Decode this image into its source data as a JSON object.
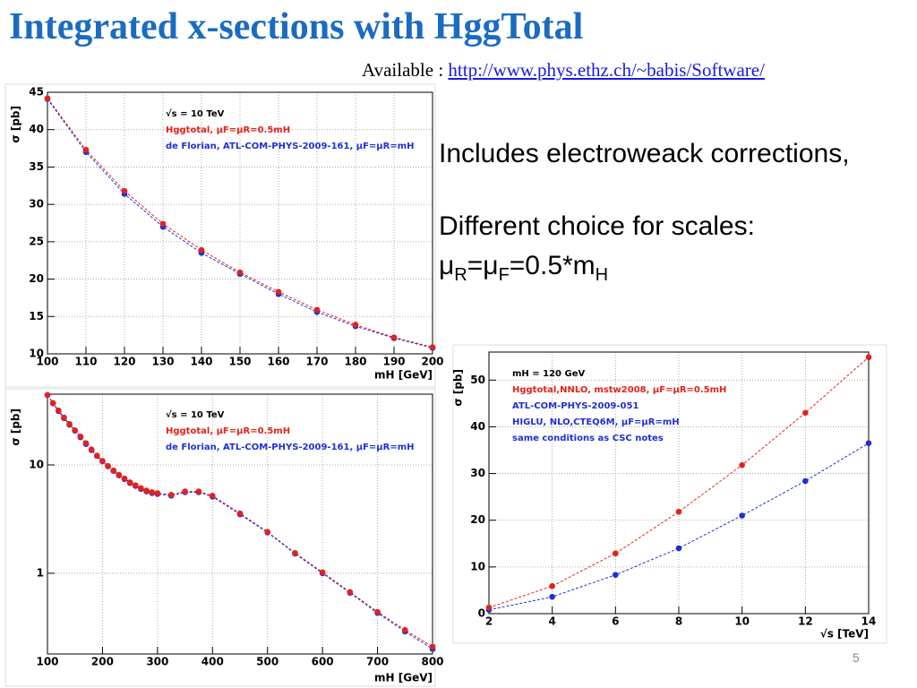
{
  "title": "Integrated x-sections with HggTotal",
  "available_label": "Available :",
  "link": "http://www.phys.ethz.ch/~babis/Software/",
  "bullets": [
    "Includes electroweack corrections,",
    "Different choice for scales:"
  ],
  "formula": [
    "μ",
    "R",
    "=μ",
    "F",
    "=0.5*m",
    "H"
  ],
  "page_number": "5",
  "chart_data": [
    {
      "type": "line",
      "x_label": "mH [GeV]",
      "y_label": "σ [pb]",
      "x": [
        100,
        110,
        120,
        130,
        140,
        150,
        160,
        170,
        180,
        190,
        200
      ],
      "series": [
        {
          "name": "Hggtotal, μF=μR=0.5mH",
          "color": "#e5211b",
          "values": [
            44.2,
            37.3,
            31.8,
            27.4,
            23.9,
            20.9,
            18.3,
            15.9,
            13.9,
            12.2,
            10.9
          ]
        },
        {
          "name": "de Florian, ATL-COM-PHYS-2009-161, μF=μR=mH",
          "color": "#1f2fd6",
          "values": [
            44.1,
            37.0,
            31.4,
            27.0,
            23.5,
            20.7,
            18.0,
            15.6,
            13.7,
            12.1,
            10.8
          ]
        }
      ],
      "annotations": [
        {
          "text": "√s = 10 TeV",
          "color": "#000000"
        }
      ],
      "xlim": [
        100,
        200
      ],
      "ylim": [
        10,
        45
      ],
      "xticks": [
        100,
        110,
        120,
        130,
        140,
        150,
        160,
        170,
        180,
        190,
        200
      ],
      "yticks": [
        10,
        15,
        20,
        25,
        30,
        35,
        40,
        45
      ],
      "grid": true,
      "log_y": false
    },
    {
      "type": "line",
      "x_label": "mH [GeV]",
      "y_label": "σ [pb]",
      "x": [
        100,
        110,
        120,
        130,
        140,
        150,
        160,
        170,
        180,
        190,
        200,
        210,
        220,
        230,
        240,
        250,
        260,
        270,
        280,
        290,
        300,
        325,
        350,
        375,
        400,
        450,
        500,
        550,
        600,
        650,
        700,
        750,
        800
      ],
      "series": [
        {
          "name": "Hggtotal, μF=μR=0.5mH",
          "color": "#e5211b",
          "values": [
            44.2,
            37.3,
            31.8,
            27.4,
            23.9,
            20.9,
            18.3,
            15.9,
            13.9,
            12.2,
            10.9,
            9.8,
            8.9,
            8.1,
            7.5,
            6.9,
            6.5,
            6.1,
            5.8,
            5.6,
            5.5,
            5.3,
            5.7,
            5.7,
            5.2,
            3.57,
            2.41,
            1.54,
            1.02,
            0.67,
            0.44,
            0.3,
            0.21
          ]
        },
        {
          "name": "de Florian, ATL-COM-PHYS-2009-161, μF=μR=mH",
          "color": "#1f2fd6",
          "values": [
            44.1,
            37.0,
            31.4,
            27.0,
            23.5,
            20.7,
            18.0,
            15.6,
            13.7,
            12.1,
            10.8,
            9.7,
            8.8,
            8.0,
            7.4,
            6.8,
            6.4,
            6.0,
            5.7,
            5.5,
            5.4,
            5.2,
            5.6,
            5.6,
            5.1,
            3.5,
            2.38,
            1.52,
            1.0,
            0.66,
            0.43,
            0.29,
            0.2
          ]
        }
      ],
      "annotations": [
        {
          "text": "√s = 10 TeV",
          "color": "#000000"
        }
      ],
      "xlim": [
        100,
        800
      ],
      "ylim": [
        0.18,
        45
      ],
      "xticks": [
        100,
        200,
        300,
        400,
        500,
        600,
        700,
        800
      ],
      "yticks": [
        1,
        10
      ],
      "grid": true,
      "log_y": true
    },
    {
      "type": "line",
      "x_label": "√s [TeV]",
      "y_label": "σ [pb]",
      "x": [
        2,
        4,
        6,
        8,
        10,
        12,
        14
      ],
      "series": [
        {
          "name": "Hggtotal,NNLO, mstw2008,  μF=μR=0.5mH",
          "color": "#e5211b",
          "values": [
            1.3,
            5.9,
            12.9,
            21.8,
            31.8,
            43.0,
            54.9
          ]
        },
        {
          "name": "HIGLU, NLO,CTEQ6M, μF=μR=mH",
          "color": "#1f2fd6",
          "values": [
            0.8,
            3.6,
            8.3,
            14.0,
            21.0,
            28.4,
            36.5
          ]
        }
      ],
      "annotations": [
        {
          "text": "mH = 120 GeV",
          "color": "#000000"
        },
        {
          "text": "ATL-COM-PHYS-2009-051",
          "color": "#1f2fd6"
        },
        {
          "text": "same conditions as CSC notes",
          "color": "#1f2fd6"
        }
      ],
      "xlim": [
        2,
        14
      ],
      "ylim": [
        0,
        56
      ],
      "xticks": [
        2,
        4,
        6,
        8,
        10,
        12,
        14
      ],
      "yticks": [
        0,
        10,
        20,
        30,
        40,
        50
      ],
      "grid": true,
      "log_y": false
    }
  ]
}
